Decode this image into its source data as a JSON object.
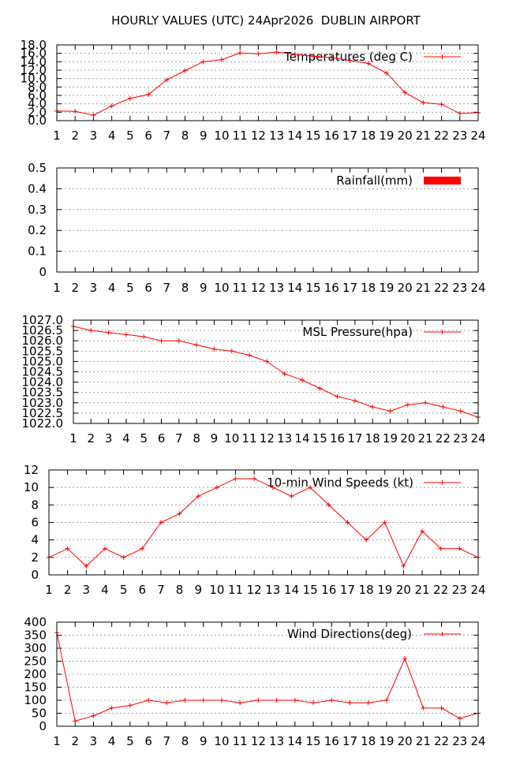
{
  "title": "HOURLY VALUES (UTC) 24Apr2026  DUBLIN AIRPORT",
  "chart_data": [
    {
      "type": "line",
      "legend": "Temperatures (deg C)",
      "legend_position": "top-right",
      "grid": true,
      "color": "#ff0000",
      "x": [
        1,
        2,
        3,
        4,
        5,
        6,
        7,
        8,
        9,
        10,
        11,
        12,
        13,
        14,
        15,
        16,
        17,
        18,
        19,
        20,
        21,
        22,
        23,
        24
      ],
      "values": [
        2.3,
        2.2,
        1.3,
        3.5,
        5.3,
        6.2,
        9.7,
        11.9,
        14.0,
        14.5,
        16.1,
        15.9,
        16.3,
        15.8,
        15.3,
        15.0,
        14.3,
        13.6,
        11.3,
        6.7,
        4.3,
        3.9,
        1.7,
        1.9
      ],
      "ylim": [
        0,
        18
      ],
      "yticks": [
        "0.0",
        "2.0",
        "4.0",
        "6.0",
        "8.0",
        "10.0",
        "12.0",
        "14.0",
        "16.0",
        "18.0"
      ]
    },
    {
      "type": "bar",
      "legend": "Rainfall(mm)",
      "legend_position": "top-right",
      "grid": true,
      "color": "#ff0000",
      "x": [
        1,
        2,
        3,
        4,
        5,
        6,
        7,
        8,
        9,
        10,
        11,
        12,
        13,
        14,
        15,
        16,
        17,
        18,
        19,
        20,
        21,
        22,
        23,
        24
      ],
      "values": [
        0,
        0,
        0,
        0,
        0,
        0,
        0,
        0,
        0,
        0,
        0,
        0,
        0,
        0,
        0,
        0,
        0,
        0,
        0,
        0,
        0,
        0,
        0,
        0
      ],
      "ylim": [
        0,
        0.5
      ],
      "yticks": [
        "0",
        "0.1",
        "0.2",
        "0.3",
        "0.4",
        "0.5"
      ]
    },
    {
      "type": "line",
      "legend": "MSL Pressure(hpa)",
      "legend_position": "top-right",
      "grid": true,
      "color": "#ff0000",
      "x": [
        1,
        2,
        3,
        4,
        5,
        6,
        7,
        8,
        9,
        10,
        11,
        12,
        13,
        14,
        15,
        16,
        17,
        18,
        19,
        20,
        21,
        22,
        23,
        24
      ],
      "values": [
        1026.7,
        1026.5,
        1026.4,
        1026.3,
        1026.2,
        1026.0,
        1026.0,
        1025.8,
        1025.6,
        1025.5,
        1025.3,
        1025.0,
        1024.4,
        1024.1,
        1023.7,
        1023.3,
        1023.1,
        1022.8,
        1022.6,
        1022.9,
        1023.0,
        1022.8,
        1022.6,
        1022.3
      ],
      "ylim": [
        1022.0,
        1027.0
      ],
      "yticks": [
        "1022.0",
        "1022.5",
        "1023.0",
        "1023.5",
        "1024.0",
        "1024.5",
        "1025.0",
        "1025.5",
        "1026.0",
        "1026.5",
        "1027.0"
      ]
    },
    {
      "type": "line",
      "legend": "10-min Wind Speeds (kt)",
      "legend_position": "top-right",
      "grid": true,
      "color": "#ff0000",
      "x": [
        1,
        2,
        3,
        4,
        5,
        6,
        7,
        8,
        9,
        10,
        11,
        12,
        13,
        14,
        15,
        16,
        17,
        18,
        19,
        20,
        21,
        22,
        23,
        24
      ],
      "values": [
        2,
        3,
        1,
        3,
        2,
        3,
        6,
        7,
        9,
        10,
        11,
        11,
        10,
        9,
        10,
        8,
        6,
        4,
        6,
        1,
        5,
        3,
        3,
        2
      ],
      "ylim": [
        0,
        12
      ],
      "yticks": [
        "0",
        "2",
        "4",
        "6",
        "8",
        "10",
        "12"
      ]
    },
    {
      "type": "line",
      "legend": "Wind Directions(deg)",
      "legend_position": "top-right",
      "grid": true,
      "color": "#ff0000",
      "x": [
        1,
        2,
        3,
        4,
        5,
        6,
        7,
        8,
        9,
        10,
        11,
        12,
        13,
        14,
        15,
        16,
        17,
        18,
        19,
        20,
        21,
        22,
        23,
        24
      ],
      "values": [
        360,
        20,
        40,
        70,
        80,
        100,
        90,
        100,
        100,
        100,
        90,
        100,
        100,
        100,
        90,
        100,
        90,
        90,
        100,
        260,
        70,
        70,
        30,
        50
      ],
      "ylim": [
        0,
        400
      ],
      "yticks": [
        "0",
        "50",
        "100",
        "150",
        "200",
        "250",
        "300",
        "350",
        "400"
      ]
    }
  ]
}
